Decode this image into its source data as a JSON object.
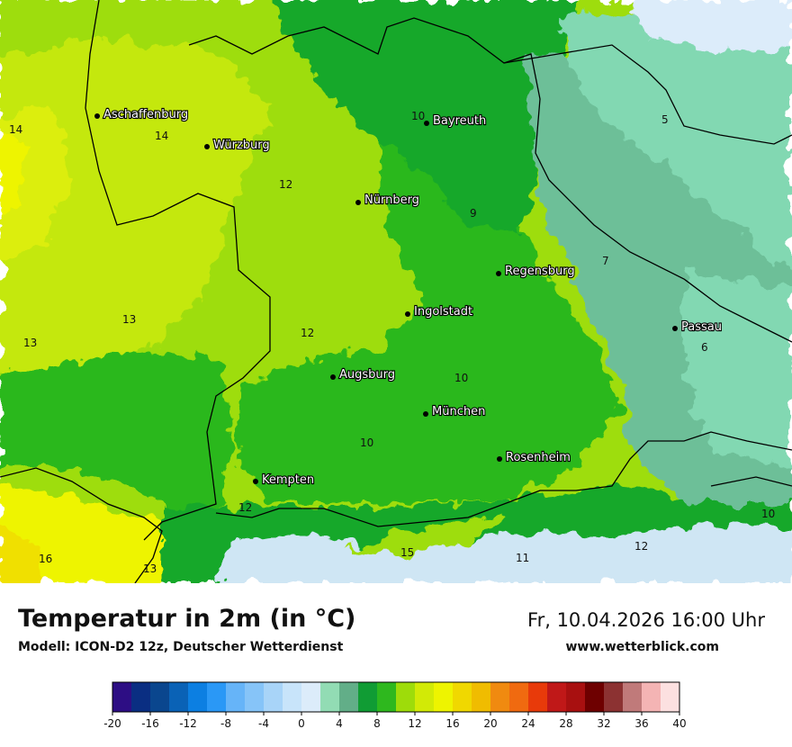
{
  "title": "Temperatur in 2m (in °C)",
  "subtitle": "Modell: ICON-D2 12z, Deutscher Wetterdienst",
  "datetime": "Fr, 10.04.2026 16:00 Uhr",
  "website": "www.wetterblick.com",
  "colors": {
    "t5": "#5fa888",
    "t6": "#82d8b2",
    "t7": "#6dbf98",
    "t9": "#16a82a",
    "t10": "#2ab81c",
    "t12": "#9edd08",
    "t13": "#c4e808",
    "t14": "#dcee08",
    "t16": "#eef400",
    "t18": "#f0e000",
    "mountain": "#cfe6f4",
    "border": "#000000"
  },
  "cities": [
    {
      "name": "Aschaffenburg"
    },
    {
      "name": "Würzburg"
    },
    {
      "name": "Bayreuth"
    },
    {
      "name": "Nürnberg"
    },
    {
      "name": "Regensburg"
    },
    {
      "name": "Ingolstadt"
    },
    {
      "name": "Passau"
    },
    {
      "name": "Augsburg"
    },
    {
      "name": "München"
    },
    {
      "name": "Rosenheim"
    },
    {
      "name": "Kempten"
    }
  ],
  "isolines": [
    "14",
    "14",
    "10",
    "5",
    "12",
    "9",
    "7",
    "13",
    "13",
    "12",
    "6",
    "10",
    "10",
    "12",
    "15",
    "11",
    "12",
    "10",
    "16",
    "13"
  ],
  "legend": {
    "ticks": [
      "-20",
      "-16",
      "-12",
      "-8",
      "-4",
      "0",
      "4",
      "8",
      "12",
      "16",
      "20",
      "24",
      "28",
      "32",
      "36",
      "40"
    ],
    "colors": [
      "#2d0e84",
      "#0a2e82",
      "#0a468e",
      "#0a62b6",
      "#0c7fe2",
      "#2a98f6",
      "#66b4f8",
      "#86c4f8",
      "#a8d4f8",
      "#c8e4fa",
      "#dcecfa",
      "#92dcb4",
      "#62ae88",
      "#109c34",
      "#2eb81e",
      "#9edc0a",
      "#d2ea06",
      "#eef400",
      "#f0d800",
      "#f0bc00",
      "#f08a10",
      "#f06a10",
      "#e83a0a",
      "#c01818",
      "#a81010",
      "#6e0000",
      "#8c3232",
      "#c07a7a",
      "#f4b4b4",
      "#fce0e0"
    ]
  }
}
